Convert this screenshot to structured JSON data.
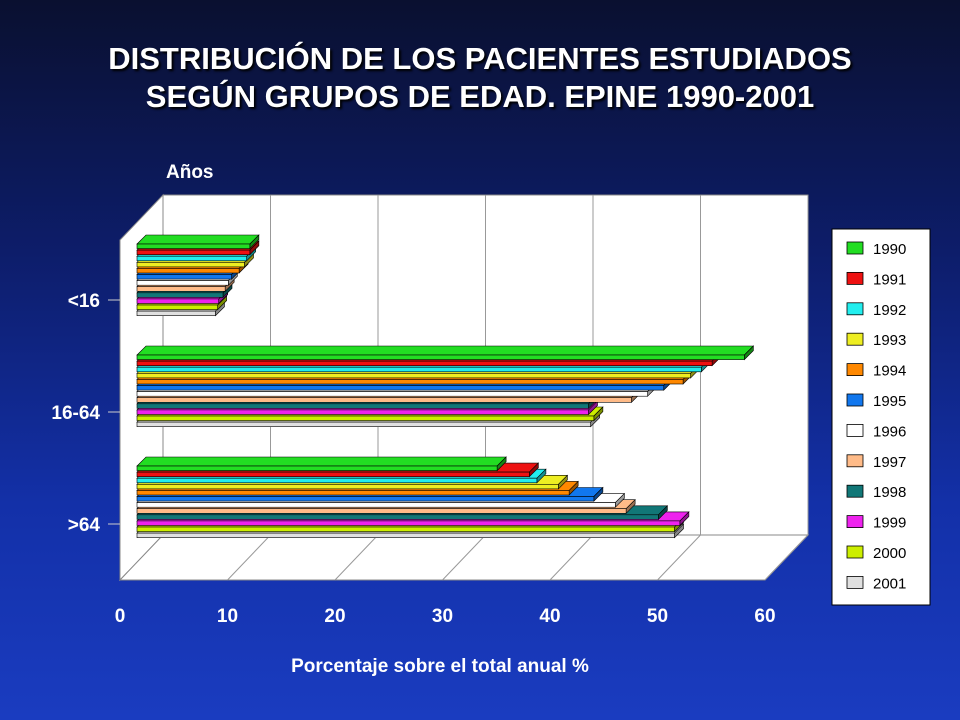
{
  "title_line1": "DISTRIBUCIÓN DE LOS PACIENTES ESTUDIADOS",
  "title_line2": "SEGÚN GRUPOS DE EDAD. EPINE 1990-2001",
  "chart_data": {
    "type": "bar",
    "orientation": "horizontal",
    "title": "DISTRIBUCIÓN DE LOS PACIENTES ESTUDIADOS SEGÚN GRUPOS DE EDAD. EPINE 1990-2001",
    "ylabel": "Años",
    "xlabel": "Porcentaje sobre el total anual %",
    "categories": [
      "<16",
      "16-64",
      ">64"
    ],
    "xlim": [
      0,
      60
    ],
    "xticks": [
      0,
      10,
      20,
      30,
      40,
      50,
      60
    ],
    "grid": true,
    "legend": "right",
    "series": [
      {
        "name": "1990",
        "color": "#22dd22",
        "values": [
          10.5,
          56.5,
          33.5
        ]
      },
      {
        "name": "1991",
        "color": "#ee1111",
        "values": [
          10.5,
          53.5,
          36.5
        ]
      },
      {
        "name": "1992",
        "color": "#22eeee",
        "values": [
          10.2,
          52.5,
          37.2
        ]
      },
      {
        "name": "1993",
        "color": "#eeee22",
        "values": [
          10.0,
          51.5,
          39.2
        ]
      },
      {
        "name": "1994",
        "color": "#ff8800",
        "values": [
          9.5,
          50.8,
          40.2
        ]
      },
      {
        "name": "1995",
        "color": "#1177ee",
        "values": [
          8.8,
          49.0,
          42.5
        ]
      },
      {
        "name": "1996",
        "color": "#ffffff",
        "values": [
          8.5,
          47.5,
          44.5
        ]
      },
      {
        "name": "1997",
        "color": "#ffbb88",
        "values": [
          8.2,
          46.0,
          45.5
        ]
      },
      {
        "name": "1998",
        "color": "#117777",
        "values": [
          8.0,
          42.0,
          48.5
        ]
      },
      {
        "name": "1999",
        "color": "#ee22ee",
        "values": [
          7.6,
          42.0,
          50.5
        ]
      },
      {
        "name": "2000",
        "color": "#ccee00",
        "values": [
          7.5,
          42.5,
          50.0
        ]
      },
      {
        "name": "2001",
        "color": "#e0e0e0",
        "values": [
          7.3,
          42.2,
          50.0
        ]
      }
    ]
  }
}
